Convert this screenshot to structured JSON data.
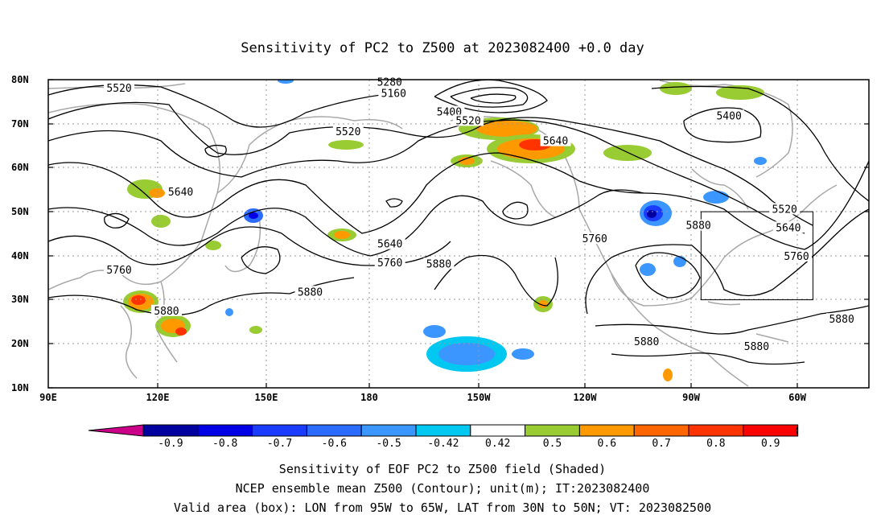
{
  "title": "Sensitivity of PC2 to Z500 at 2023082400 +0.0 day",
  "axes": {
    "lat_ticks": [
      "80N",
      "70N",
      "60N",
      "50N",
      "40N",
      "30N",
      "20N",
      "10N"
    ],
    "lon_ticks": [
      "90E",
      "120E",
      "150E",
      "180",
      "150W",
      "120W",
      "90W",
      "60W"
    ]
  },
  "contours": {
    "labels": [
      {
        "text": "5520",
        "lon": 109,
        "lat": 78
      },
      {
        "text": "5280",
        "lon": -178.5,
        "lat": 79.4
      },
      {
        "text": "5160",
        "lon": -177.4,
        "lat": 76.8
      },
      {
        "text": "5400",
        "lon": -162.5,
        "lat": 72.6
      },
      {
        "text": "5520",
        "lon": -157.4,
        "lat": 70.6
      },
      {
        "text": "5520",
        "lon": -189.6,
        "lat": 68.1
      },
      {
        "text": "5640",
        "lon": -134,
        "lat": 66
      },
      {
        "text": "5400",
        "lon": -87.5,
        "lat": 71.7
      },
      {
        "text": "5640",
        "lon": 125.5,
        "lat": 54.4
      },
      {
        "text": "5640",
        "lon": -178.4,
        "lat": 42.6
      },
      {
        "text": "5760",
        "lon": -178.4,
        "lat": 38.3
      },
      {
        "text": "5760",
        "lon": 109,
        "lat": 36.7
      },
      {
        "text": "5880",
        "lon": -165.3,
        "lat": 38.1
      },
      {
        "text": "5880",
        "lon": 160.2,
        "lat": 31.7
      },
      {
        "text": "5880",
        "lon": 121.7,
        "lat": 27.4
      },
      {
        "text": "5760",
        "lon": -123.5,
        "lat": 43.8
      },
      {
        "text": "5880",
        "lon": -95.7,
        "lat": 46.8
      },
      {
        "text": "5520",
        "lon": -72.6,
        "lat": 50.5
      },
      {
        "text": "5640",
        "lon": -71.6,
        "lat": 46.3
      },
      {
        "text": "5760",
        "lon": -69.4,
        "lat": 39.8
      },
      {
        "text": "5880",
        "lon": -57.3,
        "lat": 25.5
      },
      {
        "text": "5880",
        "lon": -109.6,
        "lat": 20.4
      },
      {
        "text": "5880",
        "lon": -80.1,
        "lat": 19.3
      }
    ]
  },
  "valid_box": {
    "lon_west": -95,
    "lon_east": -65,
    "lat_south": 30,
    "lat_north": 50
  },
  "colorbar": {
    "labels": [
      "-0.9",
      "-0.8",
      "-0.7",
      "-0.6",
      "-0.5",
      "-0.42",
      "0.42",
      "0.5",
      "0.6",
      "0.7",
      "0.8",
      "0.9"
    ],
    "colors": [
      "#0000a0",
      "#0000e6",
      "#1a3cff",
      "#2b6cff",
      "#3c96ff",
      "#00c8f0",
      "#ffffff",
      "#99cc33",
      "#ff9900",
      "#ff6600",
      "#ff3300",
      "#ff0000"
    ],
    "left_end_color": "#cc0088",
    "right_end_color": "#ff99c8"
  },
  "captions": [
    "Sensitivity of EOF PC2 to Z500 field (Shaded)",
    "NCEP ensemble mean Z500 (Contour); unit(m); IT:2023082400",
    "Valid area (box): LON from 95W to 65W, LAT from 30N to 50N; VT: 2023082500"
  ]
}
